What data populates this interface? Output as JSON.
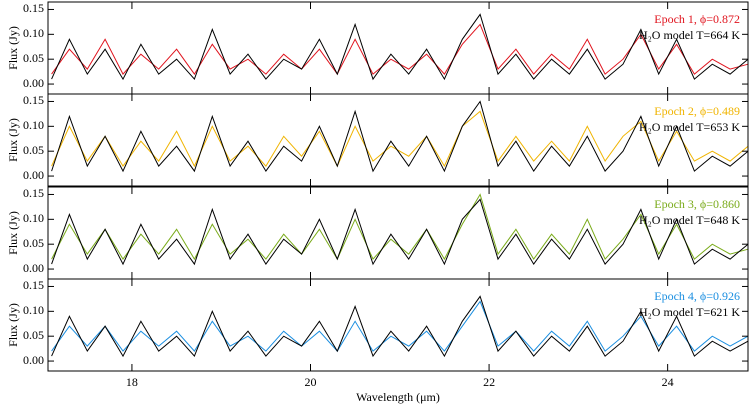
{
  "chart_data": [
    {
      "type": "line",
      "ylabel": "Flux (Jy)",
      "x": [
        17.1,
        17.3,
        17.5,
        17.7,
        17.9,
        18.1,
        18.3,
        18.5,
        18.7,
        18.9,
        19.1,
        19.3,
        19.5,
        19.7,
        19.9,
        20.1,
        20.3,
        20.5,
        20.7,
        20.9,
        21.1,
        21.3,
        21.5,
        21.7,
        21.9,
        22.1,
        22.3,
        22.5,
        22.7,
        22.9,
        23.1,
        23.3,
        23.5,
        23.7,
        23.9,
        24.1,
        24.3,
        24.5,
        24.7,
        24.9
      ],
      "series": [
        {
          "name": "Epoch 1, ϕ=0.872",
          "color": "#e0141e",
          "values": [
            0.02,
            0.07,
            0.03,
            0.09,
            0.02,
            0.06,
            0.03,
            0.07,
            0.02,
            0.08,
            0.03,
            0.05,
            0.02,
            0.06,
            0.03,
            0.07,
            0.02,
            0.09,
            0.02,
            0.05,
            0.03,
            0.06,
            0.02,
            0.08,
            0.12,
            0.03,
            0.07,
            0.02,
            0.06,
            0.03,
            0.09,
            0.02,
            0.05,
            0.1,
            0.03,
            0.08,
            0.02,
            0.05,
            0.03,
            0.04
          ]
        },
        {
          "name": "H₂O model T=664 K",
          "color": "#000000",
          "values": [
            0.01,
            0.09,
            0.02,
            0.07,
            0.01,
            0.08,
            0.02,
            0.05,
            0.01,
            0.11,
            0.02,
            0.06,
            0.01,
            0.05,
            0.03,
            0.09,
            0.02,
            0.12,
            0.01,
            0.06,
            0.02,
            0.07,
            0.01,
            0.09,
            0.14,
            0.02,
            0.06,
            0.01,
            0.05,
            0.02,
            0.07,
            0.01,
            0.04,
            0.11,
            0.02,
            0.09,
            0.01,
            0.04,
            0.02,
            0.05
          ]
        }
      ],
      "xlim": [
        17.06,
        24.9
      ],
      "xticks": [
        18,
        20,
        22,
        24
      ],
      "ylim": [
        -0.02,
        0.165
      ],
      "yticks": [
        {
          "value": 0,
          "label": "0.00"
        },
        {
          "value": 0.05,
          "label": "0.05"
        },
        {
          "value": 0.1,
          "label": "0.10"
        },
        {
          "value": 0.15,
          "label": "0.15"
        }
      ]
    },
    {
      "type": "line",
      "ylabel": "Flux (Jy)",
      "x": [
        17.1,
        17.3,
        17.5,
        17.7,
        17.9,
        18.1,
        18.3,
        18.5,
        18.7,
        18.9,
        19.1,
        19.3,
        19.5,
        19.7,
        19.9,
        20.1,
        20.3,
        20.5,
        20.7,
        20.9,
        21.1,
        21.3,
        21.5,
        21.7,
        21.9,
        22.1,
        22.3,
        22.5,
        22.7,
        22.9,
        23.1,
        23.3,
        23.5,
        23.7,
        23.9,
        24.1,
        24.3,
        24.5,
        24.7,
        24.9
      ],
      "series": [
        {
          "name": "Epoch 2, ϕ=0.489",
          "color": "#f0b400",
          "values": [
            0.02,
            0.1,
            0.03,
            0.08,
            0.02,
            0.07,
            0.03,
            0.09,
            0.02,
            0.1,
            0.03,
            0.06,
            0.02,
            0.08,
            0.04,
            0.09,
            0.02,
            0.1,
            0.03,
            0.06,
            0.04,
            0.08,
            0.02,
            0.1,
            0.13,
            0.03,
            0.08,
            0.03,
            0.07,
            0.03,
            0.1,
            0.03,
            0.08,
            0.11,
            0.03,
            0.09,
            0.03,
            0.05,
            0.03,
            0.06
          ]
        },
        {
          "name": "H₂O model T=653 K",
          "color": "#000000",
          "values": [
            0.01,
            0.12,
            0.02,
            0.08,
            0.01,
            0.09,
            0.02,
            0.06,
            0.01,
            0.12,
            0.02,
            0.07,
            0.01,
            0.06,
            0.03,
            0.1,
            0.02,
            0.13,
            0.01,
            0.07,
            0.02,
            0.08,
            0.01,
            0.1,
            0.15,
            0.02,
            0.07,
            0.01,
            0.06,
            0.02,
            0.08,
            0.01,
            0.05,
            0.12,
            0.02,
            0.1,
            0.01,
            0.04,
            0.02,
            0.05
          ]
        }
      ],
      "xlim": [
        17.06,
        24.9
      ],
      "xticks": [
        18,
        20,
        22,
        24
      ],
      "ylim": [
        -0.02,
        0.165
      ],
      "yticks": [
        {
          "value": 0,
          "label": "0.00"
        },
        {
          "value": 0.05,
          "label": "0.05"
        },
        {
          "value": 0.1,
          "label": "0.10"
        },
        {
          "value": 0.15,
          "label": "0.15"
        }
      ]
    },
    {
      "type": "line",
      "ylabel": "Flux (Jy)",
      "x": [
        17.1,
        17.3,
        17.5,
        17.7,
        17.9,
        18.1,
        18.3,
        18.5,
        18.7,
        18.9,
        19.1,
        19.3,
        19.5,
        19.7,
        19.9,
        20.1,
        20.3,
        20.5,
        20.7,
        20.9,
        21.1,
        21.3,
        21.5,
        21.7,
        21.9,
        22.1,
        22.3,
        22.5,
        22.7,
        22.9,
        23.1,
        23.3,
        23.5,
        23.7,
        23.9,
        24.1,
        24.3,
        24.5,
        24.7,
        24.9
      ],
      "series": [
        {
          "name": "Epoch 3, ϕ=0.860",
          "color": "#7aab1a",
          "values": [
            0.02,
            0.09,
            0.03,
            0.08,
            0.02,
            0.07,
            0.03,
            0.08,
            0.02,
            0.09,
            0.03,
            0.06,
            0.02,
            0.07,
            0.03,
            0.08,
            0.02,
            0.1,
            0.02,
            0.06,
            0.03,
            0.08,
            0.02,
            0.09,
            0.15,
            0.03,
            0.08,
            0.02,
            0.07,
            0.03,
            0.1,
            0.02,
            0.06,
            0.11,
            0.03,
            0.09,
            0.02,
            0.05,
            0.03,
            0.04
          ]
        },
        {
          "name": "H₂O model T=648 K",
          "color": "#000000",
          "values": [
            0.01,
            0.11,
            0.02,
            0.08,
            0.01,
            0.09,
            0.02,
            0.06,
            0.01,
            0.12,
            0.02,
            0.07,
            0.01,
            0.06,
            0.03,
            0.1,
            0.02,
            0.12,
            0.01,
            0.07,
            0.02,
            0.08,
            0.01,
            0.1,
            0.14,
            0.02,
            0.07,
            0.01,
            0.06,
            0.02,
            0.08,
            0.01,
            0.05,
            0.12,
            0.02,
            0.1,
            0.01,
            0.04,
            0.02,
            0.05
          ]
        }
      ],
      "xlim": [
        17.06,
        24.9
      ],
      "xticks": [
        18,
        20,
        22,
        24
      ],
      "ylim": [
        -0.02,
        0.165
      ],
      "yticks": [
        {
          "value": 0,
          "label": "0.00"
        },
        {
          "value": 0.05,
          "label": "0.05"
        },
        {
          "value": 0.1,
          "label": "0.10"
        },
        {
          "value": 0.15,
          "label": "0.15"
        }
      ]
    },
    {
      "type": "line",
      "ylabel": "Flux (Jy)",
      "xlabel": "Wavelength (μm)",
      "x": [
        17.1,
        17.3,
        17.5,
        17.7,
        17.9,
        18.1,
        18.3,
        18.5,
        18.7,
        18.9,
        19.1,
        19.3,
        19.5,
        19.7,
        19.9,
        20.1,
        20.3,
        20.5,
        20.7,
        20.9,
        21.1,
        21.3,
        21.5,
        21.7,
        21.9,
        22.1,
        22.3,
        22.5,
        22.7,
        22.9,
        23.1,
        23.3,
        23.5,
        23.7,
        23.9,
        24.1,
        24.3,
        24.5,
        24.7,
        24.9
      ],
      "series": [
        {
          "name": "Epoch 4, ϕ=0.926",
          "color": "#1a8ee0",
          "values": [
            0.02,
            0.07,
            0.03,
            0.07,
            0.02,
            0.06,
            0.03,
            0.06,
            0.02,
            0.08,
            0.03,
            0.05,
            0.02,
            0.06,
            0.03,
            0.06,
            0.02,
            0.08,
            0.02,
            0.05,
            0.03,
            0.06,
            0.02,
            0.07,
            0.12,
            0.03,
            0.06,
            0.02,
            0.06,
            0.03,
            0.08,
            0.02,
            0.05,
            0.09,
            0.03,
            0.07,
            0.02,
            0.05,
            0.03,
            0.05
          ]
        },
        {
          "name": "H₂O model T=621 K",
          "color": "#000000",
          "values": [
            0.01,
            0.09,
            0.02,
            0.07,
            0.01,
            0.08,
            0.02,
            0.05,
            0.01,
            0.1,
            0.02,
            0.06,
            0.01,
            0.05,
            0.03,
            0.08,
            0.02,
            0.11,
            0.01,
            0.06,
            0.02,
            0.07,
            0.01,
            0.08,
            0.13,
            0.02,
            0.06,
            0.01,
            0.05,
            0.02,
            0.07,
            0.01,
            0.04,
            0.1,
            0.02,
            0.09,
            0.01,
            0.04,
            0.02,
            0.04
          ]
        }
      ],
      "xlim": [
        17.06,
        24.9
      ],
      "xticks": [
        18,
        20,
        22,
        24
      ],
      "ylim": [
        -0.02,
        0.165
      ],
      "yticks": [
        {
          "value": 0,
          "label": "0.00"
        },
        {
          "value": 0.05,
          "label": "0.05"
        },
        {
          "value": 0.1,
          "label": "0.10"
        },
        {
          "value": 0.15,
          "label": "0.15"
        }
      ]
    }
  ]
}
